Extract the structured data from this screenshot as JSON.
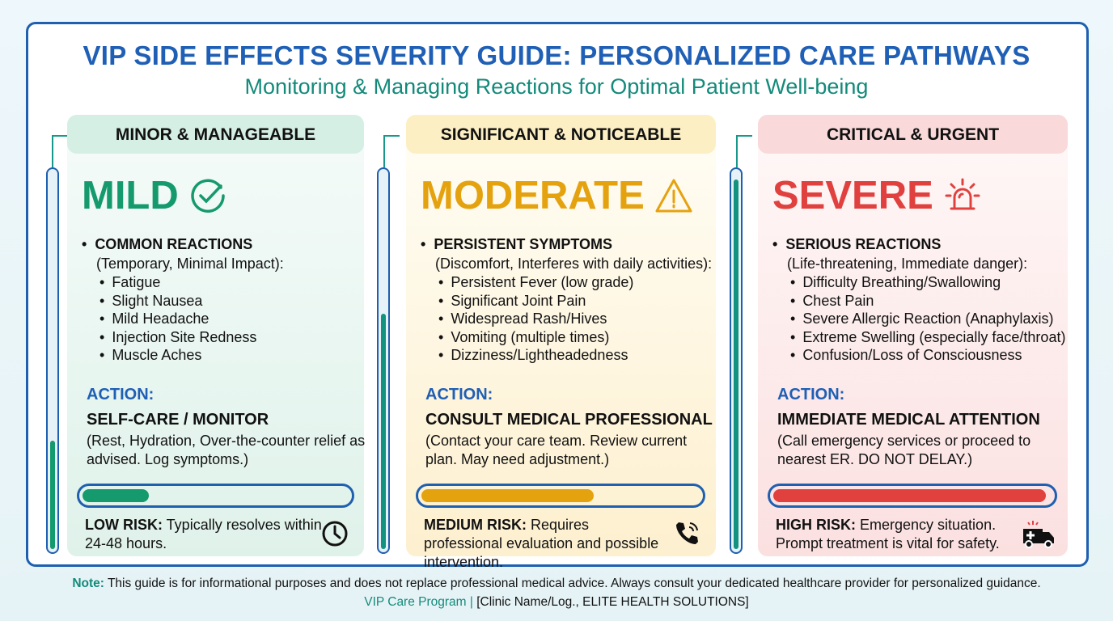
{
  "header": {
    "title": "VIP SIDE EFFECTS SEVERITY GUIDE: PERSONALIZED CARE PATHWAYS",
    "subtitle": "Monitoring & Managing Reactions for Optimal Patient Well-being"
  },
  "columns": [
    {
      "category": "MINOR & MANAGEABLE",
      "level": "MILD",
      "icon": "check-circle-icon",
      "color": "#149a6c",
      "heading": "COMMON REACTIONS",
      "sub": "(Temporary, Minimal Impact):",
      "items": [
        "Fatigue",
        "Slight Nausea",
        "Mild Headache",
        "Injection Site Redness",
        "Muscle Aches"
      ],
      "action_label": "ACTION:",
      "action_title": "SELF-CARE / MONITOR",
      "action_desc": "(Rest, Hydration, Over-the-counter relief as advised. Log symptoms.)",
      "risk_label": "LOW RISK:",
      "risk_text": " Typically resolves within 24-48 hours.",
      "risk_icon": "clock-icon",
      "risk_level": 0.25,
      "gauge_level": 0.3
    },
    {
      "category": "SIGNIFICANT & NOTICEABLE",
      "level": "MODERATE",
      "icon": "warning-icon",
      "color": "#e5a20f",
      "heading": "PERSISTENT SYMPTOMS",
      "sub": "(Discomfort, Interferes with daily activities):",
      "items": [
        "Persistent Fever (low grade)",
        "Significant Joint Pain",
        "Widespread Rash/Hives",
        "Vomiting (multiple times)",
        "Dizziness/Lightheadedness"
      ],
      "action_label": "ACTION:",
      "action_title": "CONSULT MEDICAL PROFESSIONAL",
      "action_desc": "(Contact your care team. Review current plan. May need adjustment.)",
      "risk_label": "MEDIUM RISK:",
      "risk_text": " Requires professional evaluation and possible intervention.",
      "risk_icon": "phone-icon",
      "risk_level": 0.62,
      "gauge_level": 0.63
    },
    {
      "category": "CRITICAL & URGENT",
      "level": "SEVERE",
      "icon": "alarm-siren-icon",
      "color": "#e0413f",
      "heading": "SERIOUS REACTIONS",
      "sub": "(Life-threatening, Immediate danger):",
      "items": [
        "Difficulty Breathing/Swallowing",
        "Chest Pain",
        "Severe Allergic Reaction (Anaphylaxis)",
        "Extreme Swelling (especially face/throat)",
        "Confusion/Loss of Consciousness"
      ],
      "action_label": "ACTION:",
      "action_title": "IMMEDIATE MEDICAL ATTENTION",
      "action_desc": "(Call emergency services or proceed to nearest ER. DO NOT DELAY.)",
      "risk_label": "HIGH RISK:",
      "risk_text": " Emergency situation. Prompt treatment is vital for safety.",
      "risk_icon": "ambulance-icon",
      "risk_level": 0.98,
      "gauge_level": 0.98
    }
  ],
  "footer": {
    "note_label": "Note:",
    "note_text": " This guide is for informational purposes and does not replace professional medical advice. Always consult your dedicated healthcare provider for personalized guidance.",
    "program": "VIP Care Program",
    "sep": " | ",
    "clinic": "[Clinic Name/Log., ELITE HEALTH SOLUTIONS]"
  }
}
